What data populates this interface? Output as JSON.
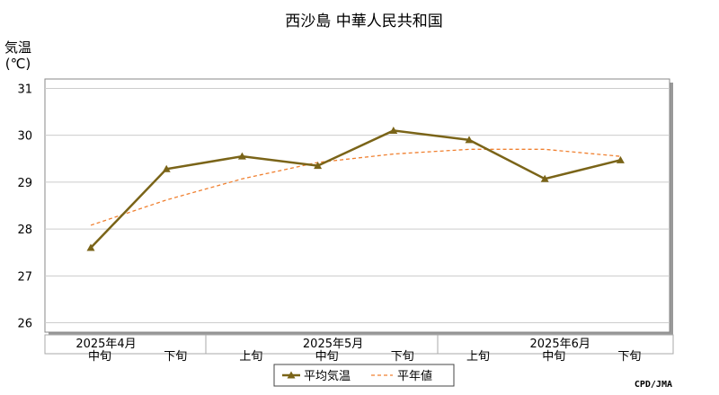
{
  "chart_data": {
    "type": "line",
    "title": "西沙島 中華人民共和国",
    "ylabel_line1": "気温",
    "ylabel_line2": "(℃)",
    "ylim": [
      25.8,
      31.2
    ],
    "yticks": [
      26,
      27,
      28,
      29,
      30,
      31
    ],
    "grid": true,
    "categories": [
      "中旬",
      "下旬",
      "上旬",
      "中旬",
      "下旬",
      "上旬",
      "中旬",
      "下旬"
    ],
    "month_labels": [
      {
        "label": "2025年4月",
        "index": 0
      },
      {
        "label": "2025年5月",
        "index": 3
      },
      {
        "label": "2025年6月",
        "index": 6
      }
    ],
    "series": [
      {
        "name": "平均気温",
        "color": "#7a6418",
        "style": "solid-marker",
        "values": [
          27.6,
          29.28,
          29.55,
          29.35,
          30.1,
          29.9,
          29.07,
          29.47
        ]
      },
      {
        "name": "平年値",
        "color": "#f08030",
        "style": "dashed",
        "values": [
          28.08,
          28.62,
          29.07,
          29.42,
          29.6,
          29.7,
          29.7,
          29.55
        ]
      }
    ],
    "legend_position": "bottom-center",
    "credit": "CPD/JMA"
  }
}
